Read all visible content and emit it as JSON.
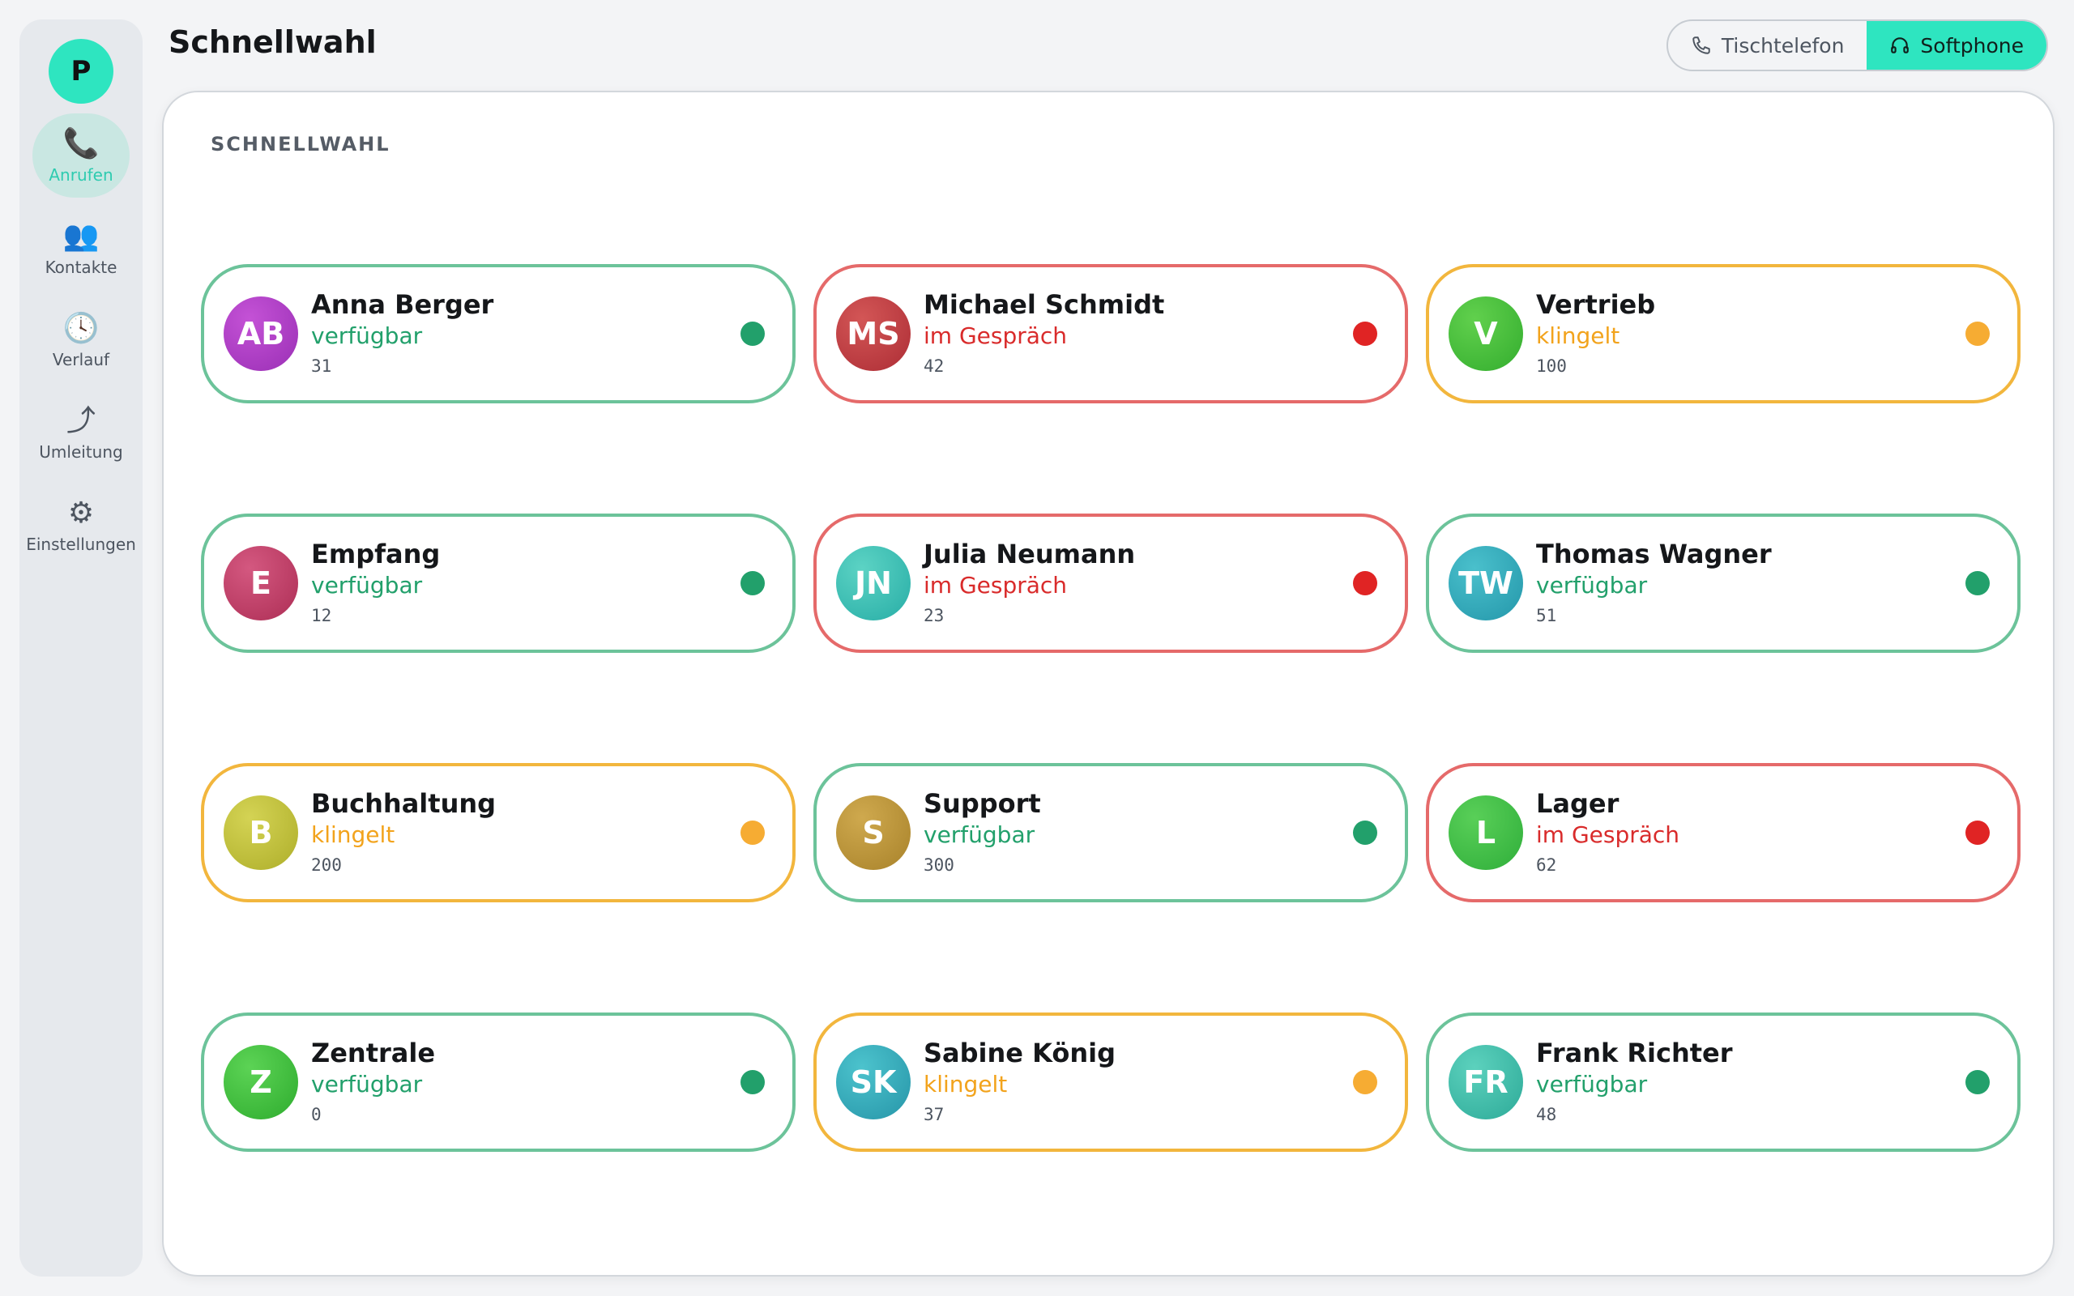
{
  "page_title": "Schnellwahl",
  "sidebar": {
    "profile_initial": "P",
    "items": [
      {
        "label": "Anrufen",
        "icon": "phone-icon",
        "glyph": "📞",
        "active": true
      },
      {
        "label": "Kontakte",
        "icon": "contacts-icon",
        "glyph": "👥",
        "active": false
      },
      {
        "label": "Verlauf",
        "icon": "clock-icon",
        "glyph": "🕓",
        "active": false
      },
      {
        "label": "Umleitung",
        "icon": "forward-icon",
        "glyph": "⤴",
        "active": false
      },
      {
        "label": "Einstellungen",
        "icon": "gear-icon",
        "glyph": "⚙",
        "active": false
      }
    ]
  },
  "mode_toggle": {
    "desk_label": "Tischtelefon",
    "soft_label": "Softphone",
    "selected": "Softphone"
  },
  "panel": {
    "label": "SCHNELLWAHL"
  },
  "status_colors": {
    "available": "#22a06b",
    "busy": "#e02424",
    "ringing": "#f6ac33",
    "accent": "#2ee5c0"
  },
  "speed_dials": [
    {
      "initials": "AB",
      "name": "Anna Berger",
      "status": "verfügbar",
      "state": "available",
      "ext": "31",
      "color_a": "#c452d6",
      "color_b": "#9a2fb5"
    },
    {
      "initials": "MS",
      "name": "Michael Schmidt",
      "status": "im Gespräch",
      "state": "busy",
      "ext": "42",
      "color_a": "#d35656",
      "color_b": "#ad2d35"
    },
    {
      "initials": "V",
      "name": "Vertrieb",
      "status": "klingelt",
      "state": "ringing",
      "ext": "100",
      "color_a": "#61d04d",
      "color_b": "#33ad2e"
    },
    {
      "initials": "E",
      "name": "Empfang",
      "status": "verfügbar",
      "state": "available",
      "ext": "12",
      "color_a": "#d45880",
      "color_b": "#ad2e55"
    },
    {
      "initials": "JN",
      "name": "Julia Neumann",
      "status": "im Gespräch",
      "state": "busy",
      "ext": "23",
      "color_a": "#5cd3c4",
      "color_b": "#27ada6"
    },
    {
      "initials": "TW",
      "name": "Thomas Wagner",
      "status": "verfügbar",
      "state": "available",
      "ext": "51",
      "color_a": "#4ac0cc",
      "color_b": "#2497aa"
    },
    {
      "initials": "B",
      "name": "Buchhaltung",
      "status": "klingelt",
      "state": "ringing",
      "ext": "200",
      "color_a": "#d4d354",
      "color_b": "#aeae2a"
    },
    {
      "initials": "S",
      "name": "Support",
      "status": "verfügbar",
      "state": "available",
      "ext": "300",
      "color_a": "#cfa94e",
      "color_b": "#a8822a"
    },
    {
      "initials": "L",
      "name": "Lager",
      "status": "im Gespräch",
      "state": "busy",
      "ext": "62",
      "color_a": "#59cf58",
      "color_b": "#2fae3a"
    },
    {
      "initials": "Z",
      "name": "Zentrale",
      "status": "verfügbar",
      "state": "available",
      "ext": "0",
      "color_a": "#5cd355",
      "color_b": "#2eac2e"
    },
    {
      "initials": "SK",
      "name": "Sabine König",
      "status": "klingelt",
      "state": "ringing",
      "ext": "37",
      "color_a": "#4cc3cd",
      "color_b": "#2695a8"
    },
    {
      "initials": "FR",
      "name": "Frank Richter",
      "status": "verfügbar",
      "state": "available",
      "ext": "48",
      "color_a": "#5cd1bd",
      "color_b": "#2daa98"
    }
  ]
}
